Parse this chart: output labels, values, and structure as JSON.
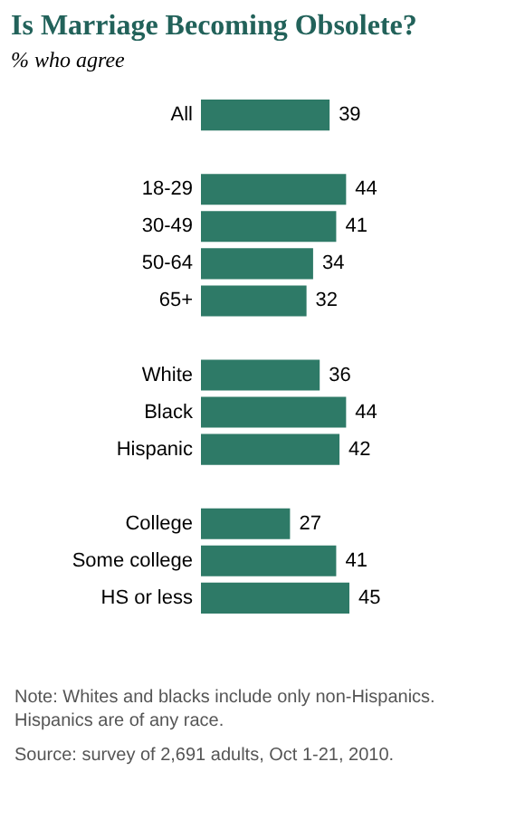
{
  "chart_data": {
    "type": "bar",
    "orientation": "horizontal",
    "title": "Is Marriage Becoming Obsolete?",
    "subtitle": "% who agree",
    "categories": [
      "All",
      null,
      "18-29",
      "30-49",
      "50-64",
      "65+",
      null,
      "White",
      "Black",
      "Hispanic",
      null,
      "College",
      "Some college",
      "HS or less"
    ],
    "values": [
      39,
      null,
      44,
      41,
      34,
      32,
      null,
      36,
      44,
      42,
      null,
      27,
      41,
      45
    ],
    "color": "#2e7a67",
    "data_labels": true,
    "annotations": [
      "Note: Whites and blacks include only non-Hispanics. Hispanics are of any race.",
      "Source: survey of 2,691 adults, Oct 1-21, 2010."
    ]
  }
}
